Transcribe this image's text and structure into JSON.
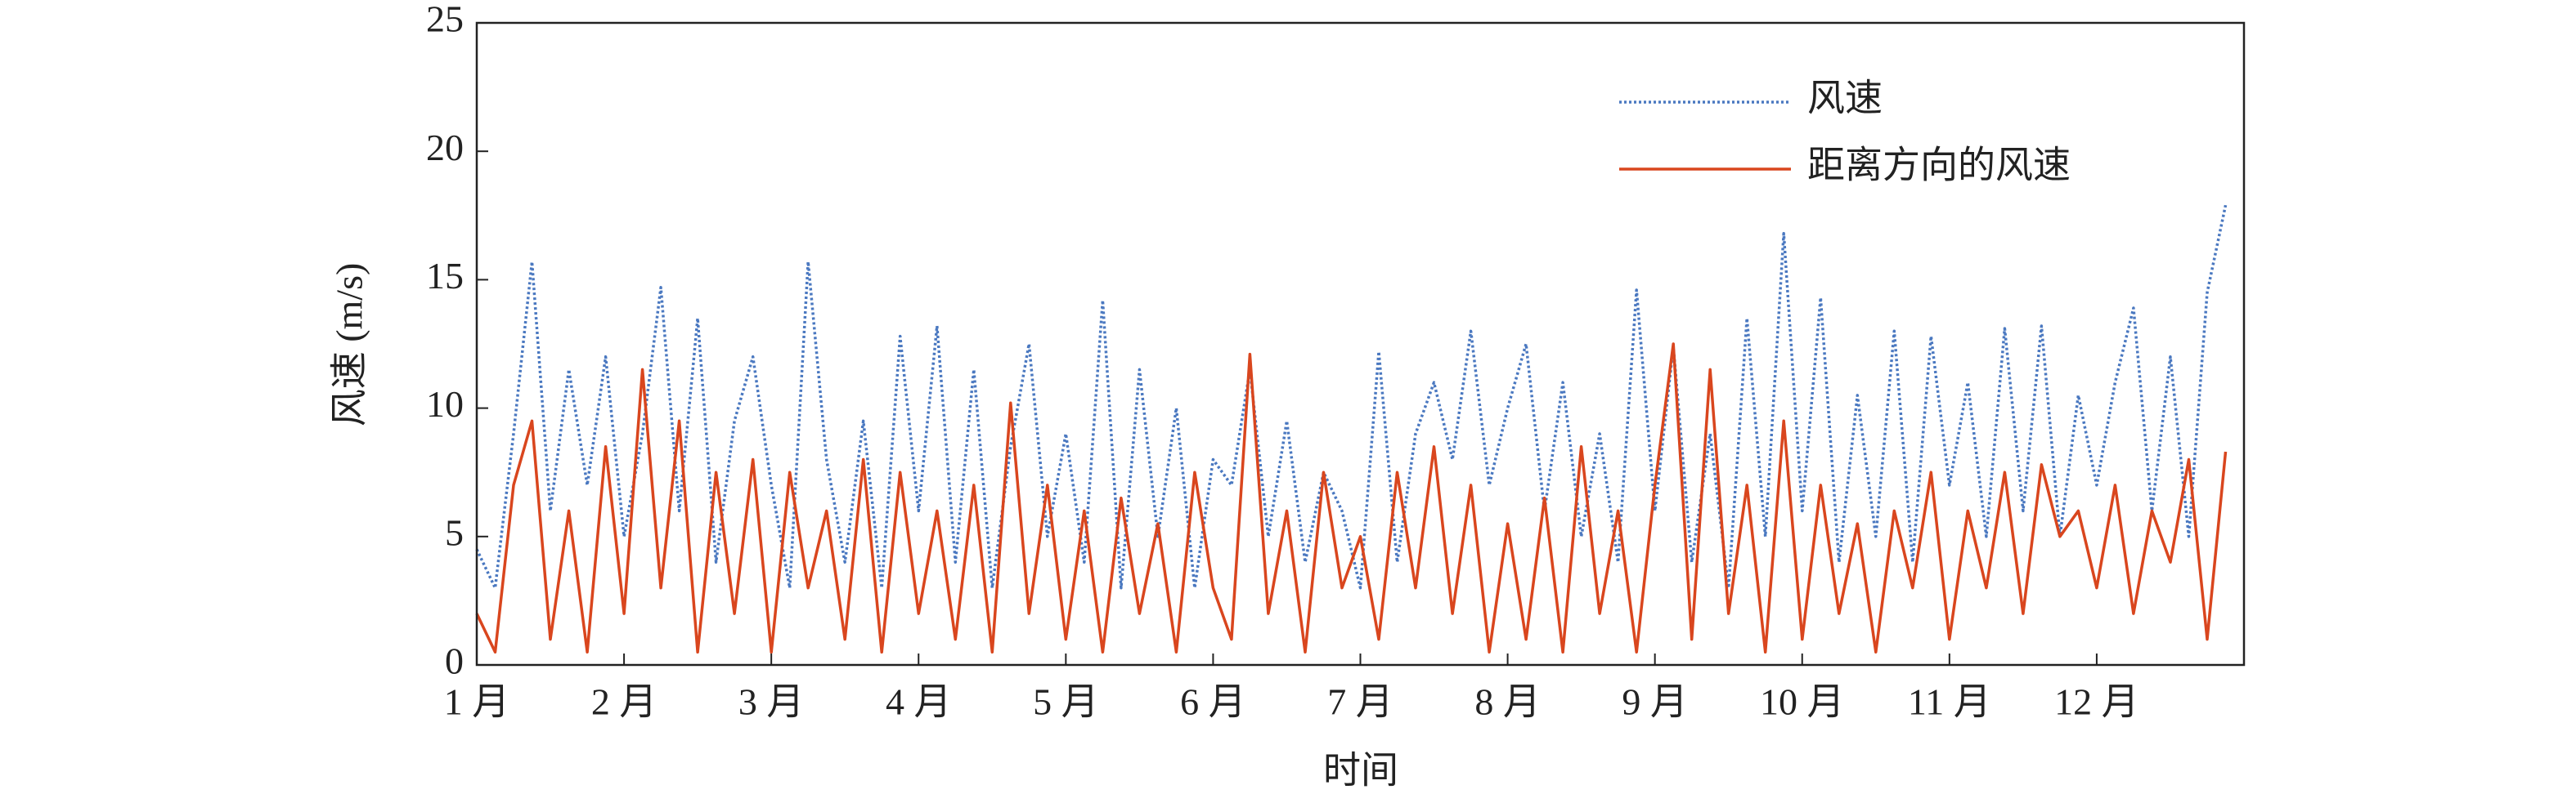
{
  "chart_data": {
    "type": "line",
    "xlabel": "时间",
    "ylabel": "风速 (m/s)",
    "categories": [
      "1 月",
      null,
      null,
      null,
      null,
      null,
      null,
      null,
      "2 月",
      null,
      null,
      null,
      null,
      null,
      null,
      null,
      "3 月",
      null,
      null,
      null,
      null,
      null,
      null,
      null,
      "4 月",
      null,
      null,
      null,
      null,
      null,
      null,
      null,
      "5 月",
      null,
      null,
      null,
      null,
      null,
      null,
      null,
      "6 月",
      null,
      null,
      null,
      null,
      null,
      null,
      null,
      "7 月",
      null,
      null,
      null,
      null,
      null,
      null,
      null,
      "8 月",
      null,
      null,
      null,
      null,
      null,
      null,
      null,
      "9 月",
      null,
      null,
      null,
      null,
      null,
      null,
      null,
      "10 月",
      null,
      null,
      null,
      null,
      null,
      null,
      null,
      "11 月",
      null,
      null,
      null,
      null,
      null,
      null,
      null,
      "12 月",
      null,
      null,
      null,
      null,
      null,
      null,
      null
    ],
    "series": [
      {
        "name": "风速",
        "color": "#4a78c0",
        "style": "dotted",
        "values": [
          4.5,
          3,
          9,
          15.7,
          6,
          11.5,
          7,
          12,
          5,
          9,
          14.7,
          6,
          13.5,
          4,
          9.5,
          12,
          7,
          3,
          15.7,
          8,
          4,
          9.5,
          3,
          12.8,
          6,
          13.2,
          4,
          11.5,
          3,
          8.5,
          12.5,
          5,
          9,
          4,
          14.2,
          3,
          11.5,
          5,
          10,
          3,
          8,
          7,
          11.5,
          5,
          9.5,
          4,
          7.5,
          6,
          3,
          12.2,
          4,
          9,
          11,
          8,
          13,
          7,
          10,
          12.5,
          6,
          11,
          5,
          9,
          4,
          14.6,
          6,
          12.4,
          4,
          9,
          3,
          13.5,
          5,
          16.8,
          6,
          14.3,
          4,
          10.5,
          5,
          13,
          4,
          12.8,
          7,
          11,
          5,
          13.1,
          6,
          13.2,
          5,
          10.5,
          7,
          11,
          13.9,
          6,
          12,
          5,
          14.5,
          17.9
        ]
      },
      {
        "name": "距离方向的风速",
        "color": "#d9461e",
        "style": "solid",
        "values": [
          2,
          0.5,
          7,
          9.5,
          1,
          6,
          0.5,
          8.5,
          2,
          11.5,
          3,
          9.5,
          0.5,
          7.5,
          2,
          8,
          0.5,
          7.5,
          3,
          6,
          1,
          8,
          0.5,
          7.5,
          2,
          6,
          1,
          7,
          0.5,
          10.2,
          2,
          7,
          1,
          6,
          0.5,
          6.5,
          2,
          5.5,
          0.5,
          7.5,
          3,
          1,
          12.1,
          2,
          6,
          0.5,
          7.5,
          3,
          5,
          1,
          7.5,
          3,
          8.5,
          2,
          7,
          0.5,
          5.5,
          1,
          6.5,
          0.5,
          8.5,
          2,
          6,
          0.5,
          7,
          12.5,
          1,
          11.5,
          2,
          7,
          0.5,
          9.5,
          1,
          7,
          2,
          5.5,
          0.5,
          6,
          3,
          7.5,
          1,
          6,
          3,
          7.5,
          2,
          7.8,
          5,
          6,
          3,
          7,
          2,
          6,
          4,
          8,
          1,
          8.3
        ]
      }
    ],
    "ylim": [
      0,
      25
    ],
    "yticks": [
      0,
      5,
      10,
      15,
      20,
      25
    ]
  }
}
